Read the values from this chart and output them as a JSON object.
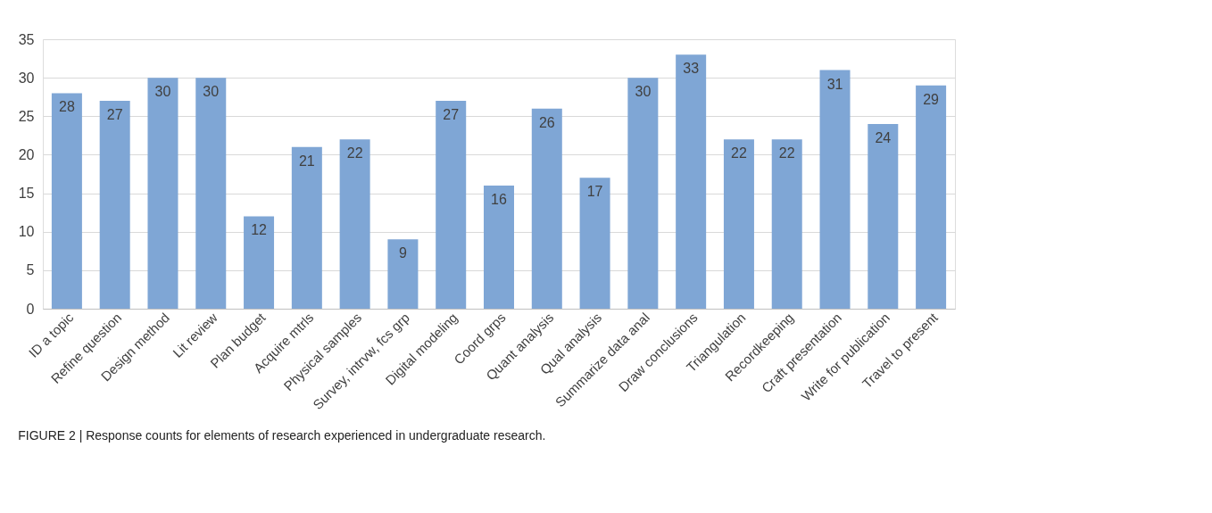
{
  "chart_data": {
    "type": "bar",
    "categories": [
      "ID a topic",
      "Refine question",
      "Design method",
      "Lit review",
      "Plan budget",
      "Acquire mtrls",
      "Physical samples",
      "Survey, intrvw, fcs grp",
      "Digital modeling",
      "Coord grps",
      "Quant analysis",
      "Qual analysis",
      "Summarize data anal",
      "Draw conclusions",
      "Triangulation",
      "Recordkeeping",
      "Craft presentation",
      "Write for publication",
      "Travel to present"
    ],
    "values": [
      28,
      27,
      30,
      30,
      12,
      21,
      22,
      9,
      27,
      16,
      26,
      17,
      30,
      33,
      22,
      22,
      31,
      24,
      29
    ],
    "color": "#7fa6d5",
    "ylim": [
      0,
      35
    ],
    "yticks": [
      0,
      5,
      10,
      15,
      20,
      25,
      30,
      35
    ],
    "grid": "y",
    "data_labels": true,
    "annotations": [
      "FIGURE 2 | Response counts for elements of research experienced in undergraduate research."
    ]
  }
}
